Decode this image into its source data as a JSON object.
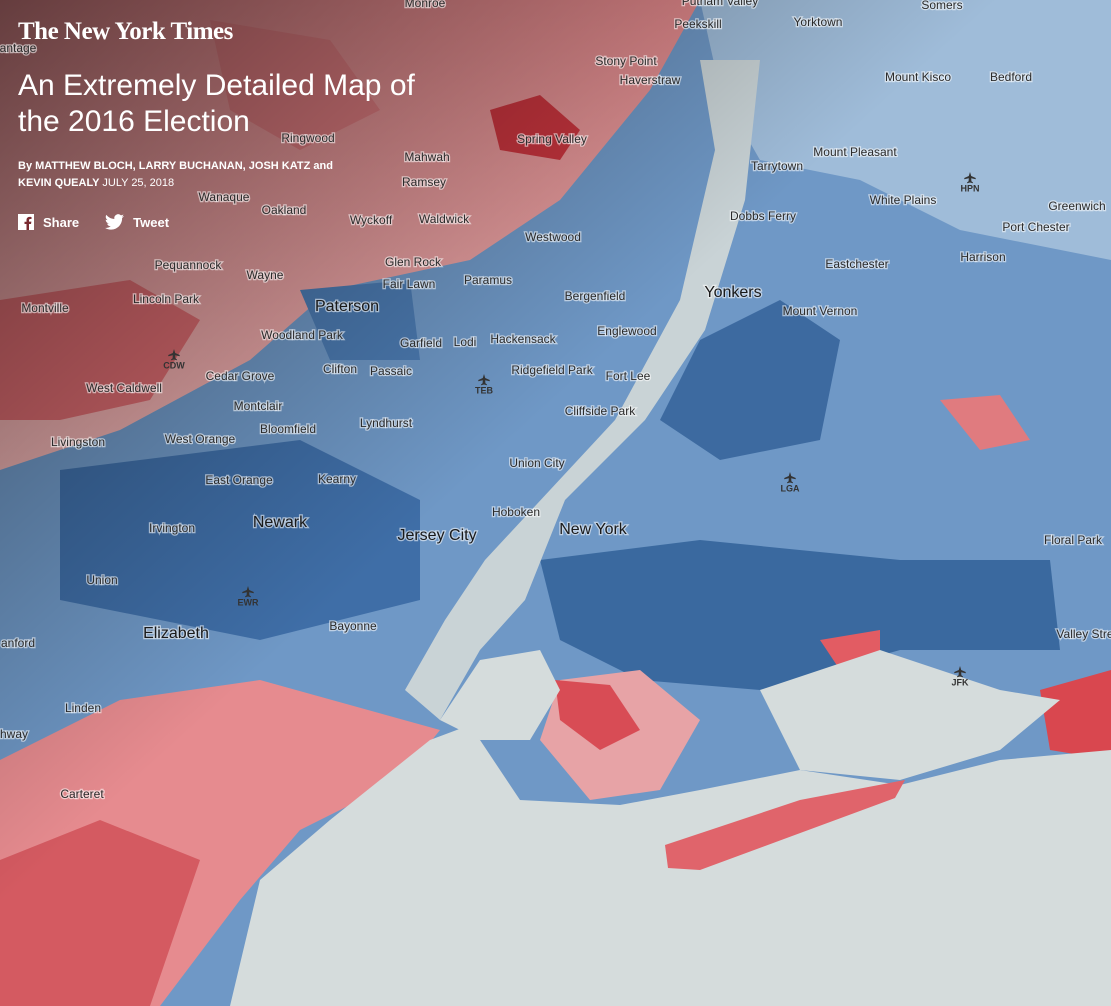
{
  "header": {
    "logo": "The New York Times",
    "title": "An Extremely Detailed Map of the 2016 Election",
    "byline": "By MATTHEW BLOCH, LARRY BUCHANAN, JOSH KATZ and KEVIN QUEALY",
    "date": "JULY 25, 2018",
    "share": "Share",
    "tweet": "Tweet"
  },
  "map": {
    "labels": [
      "Monroe",
      "Putnam Valley",
      "Somers",
      "Peekskill",
      "Yorktown",
      "antage",
      "Stony Point",
      "Haverstraw",
      "Mount Kisco",
      "Bedford",
      "Ringwood",
      "Spring Valley",
      "Mahwah",
      "Tarrytown",
      "Mount Pleasant",
      "Ramsey",
      "Wanaque",
      "White Plains",
      "Greenwich",
      "Oakland",
      "Wyckoff",
      "Waldwick",
      "Dobbs Ferry",
      "Port Chester",
      "Westwood",
      "Glen Rock",
      "Harrison",
      "Pequannock",
      "Wayne",
      "Eastchester",
      "Paramus",
      "Fair Lawn",
      "Yonkers",
      "Bergenfield",
      "Lincoln Park",
      "Montville",
      "Paterson",
      "Mount Vernon",
      "Englewood",
      "Woodland Park",
      "Garfield",
      "Lodi",
      "Hackensack",
      "Clifton",
      "Passaic",
      "Ridgefield Park",
      "Cedar Grove",
      "Fort Lee",
      "West Caldwell",
      "Montclair",
      "Cliffside Park",
      "Bloomfield",
      "Lyndhurst",
      "Livingston",
      "West Orange",
      "Union City",
      "East Orange",
      "Kearny",
      "Hoboken",
      "Newark",
      "Irvington",
      "Jersey City",
      "New York",
      "Floral Park",
      "Union",
      "Elizabeth",
      "Bayonne",
      "Valley Stre",
      "anford",
      "Linden",
      "hway",
      "Carteret"
    ],
    "airports": [
      "HPN",
      "CDW",
      "TEB",
      "LGA",
      "EWR",
      "JFK"
    ]
  }
}
